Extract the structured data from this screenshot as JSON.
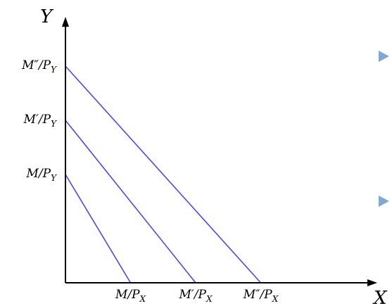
{
  "chart_data": {
    "type": "line",
    "xlabel": "X",
    "ylabel": "Y",
    "xlim": [
      0,
      3
    ],
    "ylim": [
      0,
      4
    ],
    "grid": false,
    "line_color": "#4a4aef",
    "series": [
      {
        "x": [
          0,
          1
        ],
        "y": [
          2,
          0
        ]
      },
      {
        "x": [
          0,
          2
        ],
        "y": [
          3,
          0
        ]
      },
      {
        "x": [
          0,
          3
        ],
        "y": [
          4,
          0
        ]
      }
    ],
    "x_ticks": [
      {
        "value": 1,
        "main": "M/P",
        "sub": "X"
      },
      {
        "value": 2,
        "main": "M′/P",
        "sub": "X"
      },
      {
        "value": 3,
        "main": "M″/P",
        "sub": "X"
      }
    ],
    "y_ticks": [
      {
        "value": 2,
        "main": "M/P",
        "sub": "Y"
      },
      {
        "value": 3,
        "main": "M′/P",
        "sub": "Y"
      },
      {
        "value": 4,
        "main": "M″/P",
        "sub": "Y"
      }
    ]
  },
  "bullet_color": "#7fa8d4"
}
